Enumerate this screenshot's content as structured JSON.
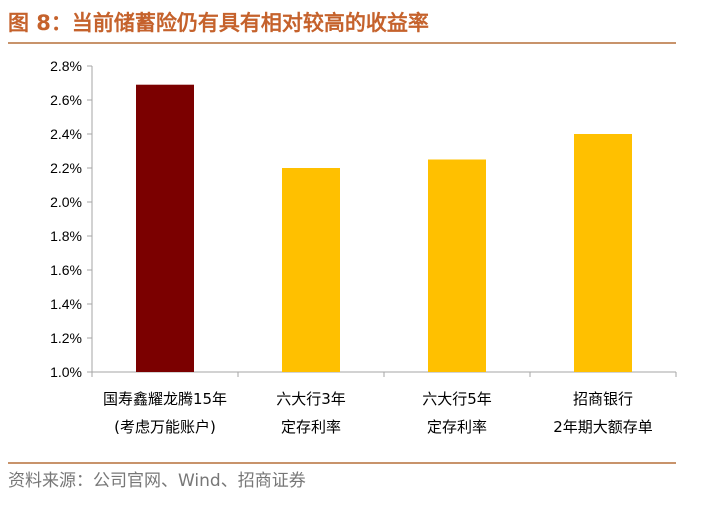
{
  "header": {
    "figure_title": "图 8：当前储蓄险仍有具有相对较高的收益率"
  },
  "footer": {
    "source": "资料来源：公司官网、Wind、招商证券"
  },
  "chart_data": {
    "type": "bar",
    "title": "图 8：当前储蓄险仍有具有相对较高的收益率",
    "xlabel": "",
    "ylabel": "",
    "ylim": [
      1.0,
      2.8
    ],
    "ytick_step": 0.2,
    "ytick_labels": [
      "1.0%",
      "1.2%",
      "1.4%",
      "1.6%",
      "1.8%",
      "2.0%",
      "2.2%",
      "2.4%",
      "2.6%",
      "2.8%"
    ],
    "grid": false,
    "legend": "none",
    "categories": [
      [
        "国寿鑫耀龙腾15年",
        "(考虑万能账户)"
      ],
      [
        "六大行3年",
        "定存利率"
      ],
      [
        "六大行5年",
        "定存利率"
      ],
      [
        "招商银行",
        "2年期大额存单"
      ]
    ],
    "values": [
      2.69,
      2.2,
      2.25,
      2.4
    ],
    "colors": [
      "#7b0000",
      "#ffc000",
      "#ffc000",
      "#ffc000"
    ],
    "axis_color": "#a6a6a6"
  }
}
